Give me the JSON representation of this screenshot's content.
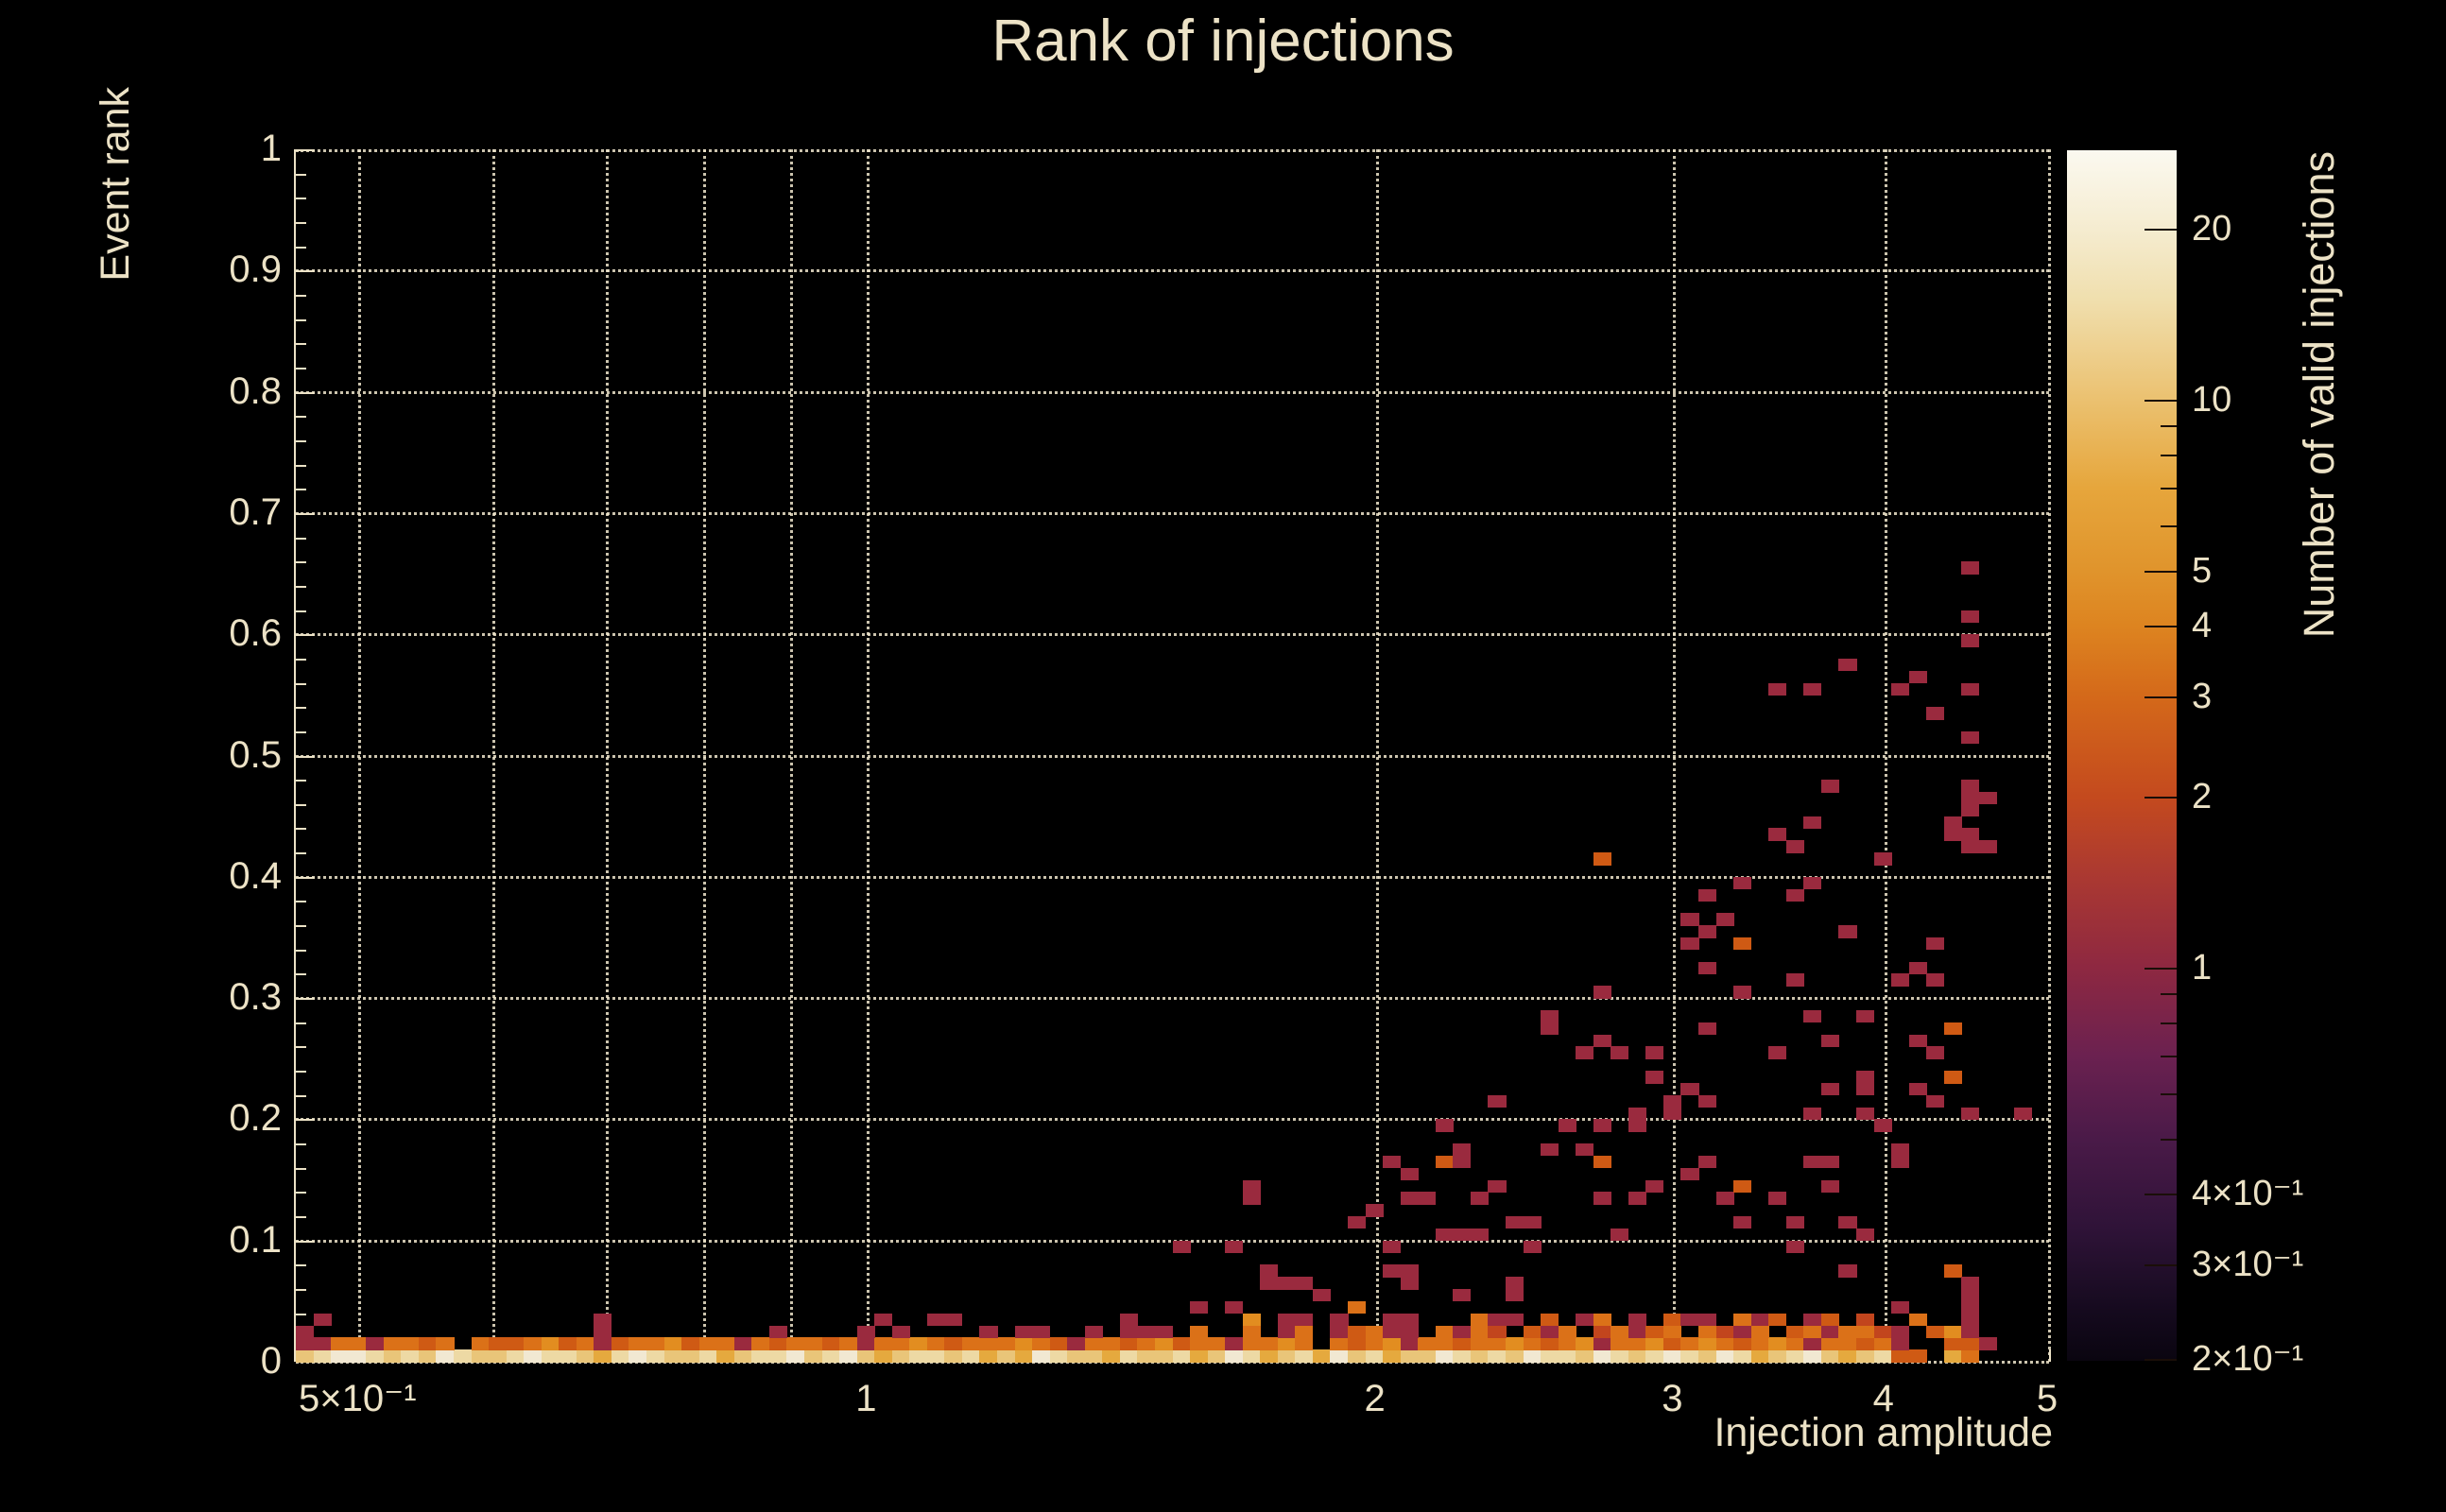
{
  "title": "Rank of injections",
  "colors": {
    "background": "#000000",
    "text_cream": "#ece2c6",
    "grid": "rgba(240,230,204,0.85)"
  },
  "axes": {
    "x_title": "Injection amplitude",
    "y_title": "Event rank",
    "x_ticks": [
      {
        "v": 0.5,
        "label": "5×10⁻¹"
      },
      {
        "v": 1,
        "label": "1"
      },
      {
        "v": 2,
        "label": "2"
      },
      {
        "v": 3,
        "label": "3"
      },
      {
        "v": 4,
        "label": "4"
      },
      {
        "v": 5,
        "label": "5"
      }
    ],
    "x_gridlines": [
      0.5,
      0.6,
      0.7,
      0.8,
      0.9,
      1,
      2,
      3,
      4,
      5
    ],
    "y_ticks": [
      {
        "v": 0,
        "label": "0"
      },
      {
        "v": 0.1,
        "label": "0.1"
      },
      {
        "v": 0.2,
        "label": "0.2"
      },
      {
        "v": 0.3,
        "label": "0.3"
      },
      {
        "v": 0.4,
        "label": "0.4"
      },
      {
        "v": 0.5,
        "label": "0.5"
      },
      {
        "v": 0.6,
        "label": "0.6"
      },
      {
        "v": 0.7,
        "label": "0.7"
      },
      {
        "v": 0.8,
        "label": "0.8"
      },
      {
        "v": 0.9,
        "label": "0.9"
      },
      {
        "v": 1,
        "label": "1"
      }
    ],
    "y_minor_step": 0.02
  },
  "colorbar": {
    "title": "Number of valid injections",
    "scale": "log",
    "range": [
      0.203,
      27.5
    ],
    "major_ticks": [
      {
        "v": 20,
        "label": "20"
      },
      {
        "v": 10,
        "label": "10"
      },
      {
        "v": 5,
        "label": "5"
      },
      {
        "v": 4,
        "label": "4"
      },
      {
        "v": 3,
        "label": "3"
      },
      {
        "v": 2,
        "label": "2"
      },
      {
        "v": 1,
        "label": "1"
      },
      {
        "v": 0.4,
        "label": "4×10⁻¹"
      },
      {
        "v": 0.3,
        "label": "3×10⁻¹"
      },
      {
        "v": 0.2,
        "label": "2×10⁻¹"
      }
    ],
    "minor_ticks": [
      9,
      8,
      7,
      6,
      0.9,
      0.8,
      0.7,
      0.6,
      0.5
    ],
    "gradient_stops": [
      [
        0,
        "#fbf9f0"
      ],
      [
        6.5,
        "#f5ecd0"
      ],
      [
        12.3,
        "#f0dfae"
      ],
      [
        20.6,
        "#ebc170"
      ],
      [
        27.9,
        "#e6a63c"
      ],
      [
        34.7,
        "#e0942c"
      ],
      [
        39.3,
        "#dd8420"
      ],
      [
        45.1,
        "#d4691a"
      ],
      [
        53.4,
        "#c44a1e"
      ],
      [
        59.4,
        "#ad3a30"
      ],
      [
        67.5,
        "#8e2841"
      ],
      [
        74.8,
        "#6b2150"
      ],
      [
        81.7,
        "#4a1a48"
      ],
      [
        89,
        "#2f1338"
      ],
      [
        95.9,
        "#150a1e"
      ],
      [
        100,
        "#0a0510"
      ]
    ]
  },
  "chart_data": {
    "type": "heatmap",
    "title": "Rank of injections",
    "xlabel": "Injection amplitude",
    "ylabel": "Event rank",
    "zlabel": "Number of valid injections",
    "x_scale": "log",
    "x_range": [
      0.4585,
      5.0
    ],
    "y_range": [
      0,
      1
    ],
    "z_scale": "log",
    "z_range": [
      0.2,
      27.5
    ],
    "n_xbins": 100,
    "n_ybins": 100,
    "level_counts": {
      "1": 1,
      "2": 2,
      "3": 3,
      "4": 4,
      "5": 5,
      "6": 8,
      "7": 12,
      "8": 18,
      "9": 24
    },
    "level_colors": {
      "1": "#9a2a3e",
      "2": "#c2451d",
      "3": "#cf5a14",
      "4": "#db7118",
      "5": "#e28d20",
      "6": "#e5a93e",
      "7": "#e9c579",
      "8": "#edd9a4",
      "9": "#f1e8d2"
    },
    "note": "rows = counts-level per log-x bin (index 0..97) for rank rows 0.00-0.01, 0.01-0.02, 0.02-0.03, 0.03-0.04; 0 = empty. cells = [amplitude, rank, level] for scattered bins above.",
    "rows": {
      "0": [
        7,
        8,
        9,
        9,
        8,
        7,
        8,
        7,
        9,
        8,
        7,
        7,
        8,
        9,
        8,
        8,
        7,
        6,
        8,
        9,
        8,
        7,
        7,
        8,
        6,
        7,
        8,
        8,
        9,
        7,
        8,
        9,
        7,
        6,
        7,
        8,
        8,
        7,
        8,
        6,
        7,
        6,
        9,
        8,
        7,
        7,
        6,
        8,
        7,
        7,
        8,
        6,
        7,
        9,
        8,
        6,
        7,
        8,
        6,
        9,
        7,
        8,
        6,
        7,
        7,
        9,
        8,
        7,
        8,
        7,
        9,
        8,
        8,
        7,
        9,
        8,
        7,
        8,
        9,
        8,
        7,
        9,
        8,
        6,
        7,
        8,
        9,
        7,
        6,
        7,
        8,
        3,
        3,
        0,
        6,
        4,
        0,
        0
      ],
      "1": [
        1,
        1,
        4,
        4,
        1,
        4,
        4,
        3,
        4,
        0,
        4,
        3,
        3,
        4,
        5,
        3,
        4,
        1,
        3,
        4,
        4,
        5,
        3,
        4,
        4,
        1,
        4,
        3,
        4,
        4,
        3,
        4,
        1,
        4,
        4,
        5,
        4,
        3,
        4,
        4,
        4,
        5,
        4,
        3,
        1,
        4,
        4,
        3,
        4,
        5,
        3,
        4,
        4,
        1,
        4,
        4,
        5,
        4,
        0,
        4,
        3,
        4,
        5,
        1,
        4,
        4,
        3,
        4,
        4,
        5,
        4,
        3,
        4,
        5,
        1,
        4,
        4,
        5,
        3,
        4,
        5,
        4,
        3,
        4,
        5,
        4,
        1,
        4,
        4,
        3,
        4,
        1,
        0,
        0,
        3,
        3,
        1,
        0
      ],
      "2": [
        1,
        0,
        0,
        0,
        0,
        0,
        0,
        0,
        0,
        0,
        0,
        0,
        0,
        0,
        0,
        0,
        0,
        1,
        0,
        0,
        0,
        0,
        0,
        0,
        0,
        0,
        0,
        1,
        0,
        0,
        0,
        0,
        1,
        0,
        1,
        0,
        0,
        0,
        0,
        1,
        0,
        1,
        1,
        0,
        0,
        1,
        0,
        1,
        0,
        1,
        0,
        4,
        0,
        0,
        4,
        0,
        1,
        4,
        0,
        1,
        3,
        4,
        1,
        1,
        0,
        4,
        1,
        4,
        2,
        0,
        3,
        1,
        4,
        0,
        2,
        4,
        1,
        3,
        4,
        0,
        4,
        2,
        1,
        4,
        0,
        3,
        4,
        1,
        4,
        4,
        2,
        1,
        0,
        3,
        5,
        1,
        0,
        0
      ],
      "3": [
        0,
        1,
        0,
        0,
        0,
        0,
        0,
        0,
        0,
        0,
        0,
        0,
        0,
        0,
        0,
        0,
        0,
        1,
        0,
        0,
        0,
        0,
        0,
        0,
        0,
        0,
        0,
        0,
        0,
        0,
        0,
        0,
        0,
        1,
        0,
        0,
        1,
        0,
        0,
        0,
        0,
        0,
        0,
        0,
        0,
        0,
        0,
        1,
        0,
        0,
        0,
        0,
        0,
        0,
        5,
        0,
        1,
        1,
        0,
        1,
        0,
        0,
        1,
        1,
        0,
        0,
        0,
        4,
        1,
        1,
        0,
        3,
        0,
        1,
        4,
        0,
        1,
        0,
        3,
        1,
        1,
        0,
        4,
        1,
        3,
        0,
        1,
        3,
        0,
        2,
        0,
        0,
        4,
        0,
        0,
        1,
        0,
        0
      ]
    },
    "cells": [
      [
        1.12,
        0.037,
        1
      ],
      [
        1.42,
        0.038,
        1
      ],
      [
        1.37,
        0.025,
        1
      ],
      [
        1.47,
        0.025,
        1
      ],
      [
        1.52,
        0.092,
        1
      ],
      [
        1.63,
        0.09,
        1
      ],
      [
        1.58,
        0.045,
        1
      ],
      [
        1.63,
        0.045,
        1
      ],
      [
        1.69,
        0.145,
        1
      ],
      [
        1.69,
        0.132,
        1
      ],
      [
        1.73,
        0.078,
        1
      ],
      [
        1.73,
        0.065,
        1
      ],
      [
        1.78,
        0.065,
        1
      ],
      [
        1.82,
        0.065,
        1
      ],
      [
        1.86,
        0.052,
        1
      ],
      [
        1.95,
        0.112,
        1
      ],
      [
        1.95,
        0.045,
        4
      ],
      [
        2.0,
        0.122,
        1
      ],
      [
        2.03,
        0.162,
        1
      ],
      [
        2.03,
        0.09,
        1
      ],
      [
        2.03,
        0.078,
        1
      ],
      [
        2.08,
        0.152,
        1
      ],
      [
        2.08,
        0.132,
        1
      ],
      [
        2.08,
        0.078,
        1
      ],
      [
        2.08,
        0.065,
        1
      ],
      [
        2.14,
        0.132,
        1
      ],
      [
        2.18,
        0.19,
        1
      ],
      [
        2.18,
        0.162,
        3
      ],
      [
        2.18,
        0.104,
        1
      ],
      [
        2.23,
        0.178,
        1
      ],
      [
        2.23,
        0.168,
        1
      ],
      [
        2.23,
        0.104,
        1
      ],
      [
        2.23,
        0.055,
        1
      ],
      [
        2.28,
        0.104,
        1
      ],
      [
        2.29,
        0.132,
        1
      ],
      [
        2.35,
        0.145,
        1
      ],
      [
        2.35,
        0.212,
        1
      ],
      [
        2.26,
        0.172,
        1
      ],
      [
        2.3,
        0.104,
        1
      ],
      [
        2.4,
        0.065,
        1
      ],
      [
        2.4,
        0.055,
        1
      ],
      [
        2.42,
        0.117,
        1
      ],
      [
        2.48,
        0.117,
        1
      ],
      [
        2.47,
        0.09,
        1
      ],
      [
        2.52,
        0.285,
        1
      ],
      [
        2.52,
        0.273,
        1
      ],
      [
        2.56,
        0.17,
        1
      ],
      [
        2.59,
        0.19,
        1
      ],
      [
        2.64,
        0.25,
        1
      ],
      [
        2.65,
        0.172,
        1
      ],
      [
        2.7,
        0.13,
        1
      ],
      [
        2.71,
        0.3,
        1
      ],
      [
        2.71,
        0.415,
        3
      ],
      [
        2.72,
        0.19,
        1
      ],
      [
        2.72,
        0.168,
        3
      ],
      [
        2.75,
        0.265,
        1
      ],
      [
        2.76,
        0.104,
        1
      ],
      [
        2.78,
        0.25,
        1
      ],
      [
        2.83,
        0.13,
        1
      ],
      [
        2.85,
        0.19,
        1
      ],
      [
        2.85,
        0.205,
        1
      ],
      [
        2.9,
        0.25,
        1
      ],
      [
        2.95,
        0.25,
        1
      ],
      [
        2.95,
        0.235,
        1
      ],
      [
        2.95,
        0.142,
        1
      ],
      [
        3.0,
        0.205,
        1
      ],
      [
        3.0,
        0.212,
        1
      ],
      [
        3.05,
        0.155,
        1
      ],
      [
        3.07,
        0.342,
        1
      ],
      [
        3.07,
        0.366,
        1
      ],
      [
        3.08,
        0.22,
        1
      ],
      [
        3.1,
        0.155,
        1
      ],
      [
        3.13,
        0.212,
        1
      ],
      [
        3.14,
        0.16,
        1
      ],
      [
        3.14,
        0.273,
        1
      ],
      [
        3.14,
        0.329,
        1
      ],
      [
        3.14,
        0.352,
        1
      ],
      [
        3.14,
        0.38,
        1
      ],
      [
        3.2,
        0.13,
        1
      ],
      [
        3.22,
        0.366,
        1
      ],
      [
        3.27,
        0.117,
        1
      ],
      [
        3.29,
        0.3,
        1
      ],
      [
        3.29,
        0.342,
        3
      ],
      [
        3.29,
        0.395,
        1
      ],
      [
        3.32,
        0.142,
        3
      ],
      [
        3.45,
        0.13,
        1
      ],
      [
        3.45,
        0.555,
        1
      ],
      [
        3.46,
        0.25,
        1
      ],
      [
        3.46,
        0.43,
        1
      ],
      [
        3.5,
        0.117,
        1
      ],
      [
        3.54,
        0.38,
        1
      ],
      [
        3.55,
        0.09,
        1
      ],
      [
        3.55,
        0.31,
        1
      ],
      [
        3.55,
        0.42,
        1
      ],
      [
        3.6,
        0.205,
        1
      ],
      [
        3.63,
        0.285,
        1
      ],
      [
        3.63,
        0.395,
        1
      ],
      [
        3.63,
        0.445,
        1
      ],
      [
        3.64,
        0.553,
        1
      ],
      [
        3.65,
        0.168,
        1
      ],
      [
        3.7,
        0.142,
        1
      ],
      [
        3.7,
        0.47,
        1
      ],
      [
        3.72,
        0.168,
        1
      ],
      [
        3.72,
        0.262,
        1
      ],
      [
        3.75,
        0.22,
        1
      ],
      [
        3.8,
        0.078,
        1
      ],
      [
        3.8,
        0.117,
        1
      ],
      [
        3.8,
        0.572,
        1
      ],
      [
        3.82,
        0.354,
        1
      ],
      [
        3.85,
        0.205,
        1
      ],
      [
        3.85,
        0.22,
        1
      ],
      [
        3.9,
        0.104,
        1
      ],
      [
        3.9,
        0.238,
        1
      ],
      [
        3.9,
        0.285,
        1
      ],
      [
        4.0,
        0.19,
        1
      ],
      [
        4.0,
        0.41,
        1
      ],
      [
        4.07,
        0.553,
        1
      ],
      [
        4.08,
        0.16,
        1
      ],
      [
        4.08,
        0.175,
        1
      ],
      [
        4.08,
        0.31,
        1
      ],
      [
        4.1,
        0.045,
        1
      ],
      [
        4.18,
        0.562,
        1
      ],
      [
        4.2,
        0.225,
        1
      ],
      [
        4.2,
        0.262,
        1
      ],
      [
        4.2,
        0.329,
        1
      ],
      [
        4.27,
        0.21,
        1
      ],
      [
        4.28,
        0.532,
        1
      ],
      [
        4.3,
        0.25,
        1
      ],
      [
        4.3,
        0.31,
        1
      ],
      [
        4.3,
        0.342,
        1
      ],
      [
        4.38,
        0.44,
        1
      ],
      [
        4.42,
        0.078,
        3
      ],
      [
        4.42,
        0.238,
        3
      ],
      [
        4.42,
        0.273,
        3
      ],
      [
        4.42,
        0.43,
        1
      ],
      [
        4.45,
        0.468,
        1
      ],
      [
        4.5,
        0.045,
        1
      ],
      [
        4.5,
        0.052,
        1
      ],
      [
        4.5,
        0.065,
        1
      ],
      [
        4.5,
        0.42,
        1
      ],
      [
        4.5,
        0.437,
        1
      ],
      [
        4.5,
        0.45,
        1
      ],
      [
        4.5,
        0.472,
        1
      ],
      [
        4.5,
        0.512,
        1
      ],
      [
        4.5,
        0.55,
        1
      ],
      [
        4.5,
        0.592,
        1
      ],
      [
        4.5,
        0.615,
        1
      ],
      [
        4.5,
        0.655,
        1
      ],
      [
        4.52,
        0.2,
        1
      ],
      [
        4.56,
        0.42,
        1
      ],
      [
        4.56,
        0.468,
        1
      ],
      [
        4.88,
        0.2,
        1
      ]
    ]
  }
}
